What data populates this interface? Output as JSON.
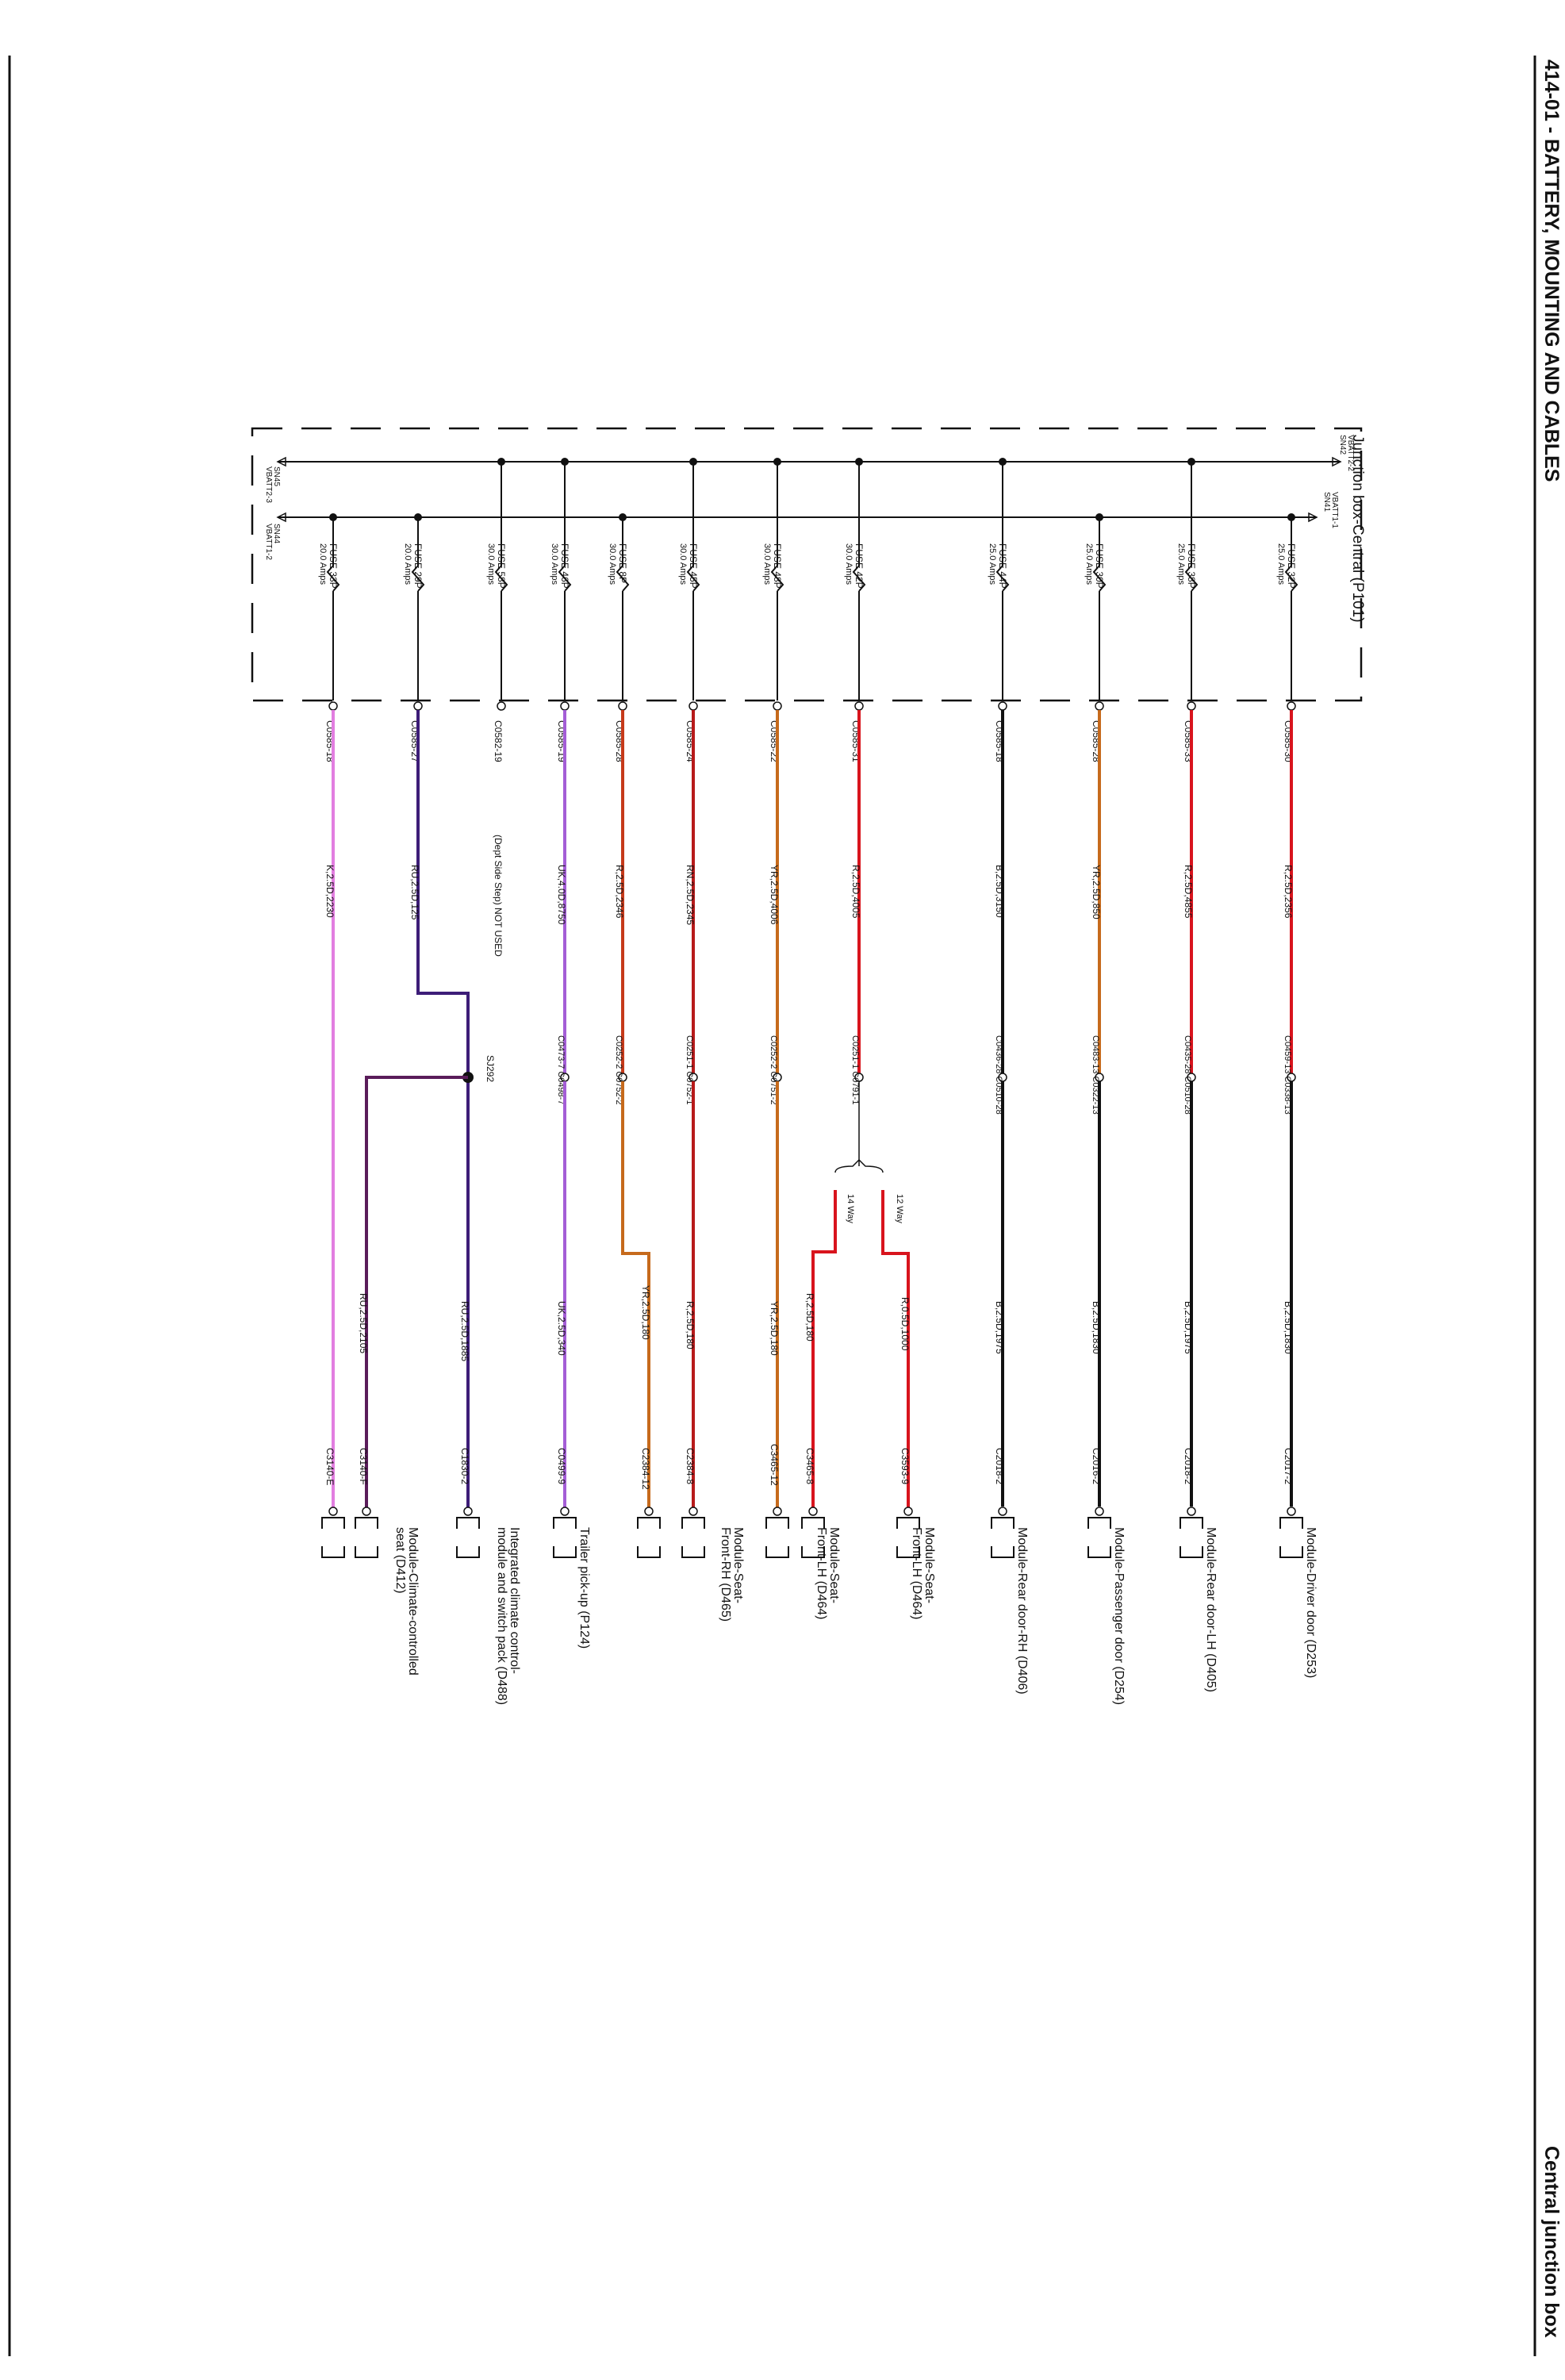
{
  "header": {
    "title": "414-01 - BATTERY, MOUNTING AND CABLES",
    "section": "Central junction box"
  },
  "junction_box": {
    "label": "Junction box-Central (P101)",
    "bus_a": {
      "left_label": "SN45",
      "left_sub": "VBATT2-3",
      "right_label": "VBATT2-2",
      "right_sub": "SN42"
    },
    "bus_b": {
      "left_label": "SN44",
      "left_sub": "VBATT1-2",
      "right_label": "VBATT1-1",
      "right_sub": "SN41"
    }
  },
  "circuits": [
    {
      "bus": "b",
      "fuse": "FUSE 32P",
      "amps": "25.0 Amps",
      "conn": "C0585-30",
      "wire": "R,2.5D,2356",
      "inline": "C0459-13 C0338-13",
      "wire2": "B,2.5D,1830",
      "end": "C2017-2",
      "module": [
        "Module-Driver door (D253)"
      ],
      "color": "#d8141d"
    },
    {
      "bus": "a",
      "fuse": "FUSE 38P",
      "amps": "25.0 Amps",
      "conn": "C0585-33",
      "wire": "R,2.5D,4855",
      "inline": "C0435-28 C0510-28",
      "wire2": "B,2.5D,1975",
      "end": "C2018-2",
      "module": [
        "Module-Rear door-LH (D405)"
      ],
      "color": "#d8141d"
    },
    {
      "bus": "b",
      "fuse": "FUSE 30P",
      "amps": "25.0 Amps",
      "conn": "C0585-28",
      "wire": "YR,2.5D,850",
      "inline": "C0483-13 C0322-13",
      "wire2": "B,2.5D,1830",
      "end": "C2016-2",
      "module": [
        "Module-Passenger door (D254)"
      ],
      "color": "#c66a1c"
    },
    {
      "bus": "a",
      "fuse": "FUSE 44P",
      "amps": "25.0 Amps",
      "conn": "C0585-18",
      "wire": "B,2.5D,3150",
      "inline": "C0436-28 C0510-28",
      "wire2": "B,2.5D,1975",
      "end": "C2018-2",
      "module": [
        "Module-Rear door-RH (D406)"
      ],
      "color": "#111111"
    },
    {
      "bus": "a",
      "fuse": "FUSE 42P",
      "amps": "30.0 Amps",
      "conn": "C0585-31",
      "wire": "R,2.5D,4005",
      "inline": "C0251-1 C0791-1",
      "wire2": "",
      "end": "",
      "module": [],
      "color": "#d8141d"
    },
    {
      "bus": "a",
      "fuse": "FUSE 48P",
      "amps": "30.0 Amps",
      "conn": "C0585-22",
      "wire": "YR,2.5D,4006",
      "inline": "C0252-2 C0751-2",
      "wire2": "YR,2.5D,180",
      "end": "C3465-12",
      "module": [],
      "color": "#c66a1c"
    },
    {
      "bus": "a",
      "fuse": "FUSE 45P",
      "amps": "30.0 Amps",
      "conn": "C0585-24",
      "wire": "RN,2.5D,2345",
      "inline": "C0251-1 C0752-1",
      "wire2": "R,2.5D,180",
      "end": "C2384-8",
      "module": [
        "Module-Seat-",
        "Front-RH (D465)"
      ],
      "color": "#b71a1a"
    },
    {
      "bus": "b",
      "fuse": "FUSE 8P",
      "amps": "30.0 Amps",
      "conn": "C0585-28",
      "wire": "R,2.5D,2346",
      "inline": "C0252-2 C0752-2",
      "wire2": "YR,2.5D,180",
      "end": "C2384-12",
      "module": [],
      "color": "#c63a1a"
    },
    {
      "bus": "a",
      "fuse": "FUSE 46P",
      "amps": "30.0 Amps",
      "conn": "C0585-19",
      "wire": "UK,4.0D,8750",
      "inline": "C0473-7 C0498-7",
      "wire2": "UK,2.5D,340",
      "end": "C0499-9",
      "module": [
        "Trailer pick-up (P124)"
      ],
      "color": "#a45ed6"
    },
    {
      "bus": "a",
      "fuse": "FUSE 58P",
      "amps": "30.0 Amps",
      "conn": "C0582-19",
      "wire": "(Dept Side Step) NOT USED",
      "inline": "",
      "wire2": "",
      "end": "",
      "module": [],
      "color": "#111111"
    },
    {
      "bus": "b",
      "fuse": "FUSE 29P",
      "amps": "20.0 Amps",
      "conn": "C0585-27",
      "wire": "RU,2.5D,125",
      "inline": "",
      "wire2": "RU,2.5D,1885",
      "end": "C1830-2",
      "module": [
        "Integrated climate control-",
        "module and switch pack (D488)"
      ],
      "color": "#3d1d78"
    },
    {
      "bus": "b",
      "fuse": "FUSE 33P",
      "amps": "20.0 Amps",
      "conn": "C0585-18",
      "wire": "K,2.5D,2230",
      "inline": "",
      "wire2": "RU,2.5D,2105",
      "end": "C3140-F",
      "module": [
        "Module-Climate-controlled",
        "seat (D412)"
      ],
      "color": "#e27ee0"
    }
  ],
  "seat_lh": {
    "way12": "12 Way",
    "way14": "14 Way",
    "wire_a": "R,0.5D,1000",
    "end_a": "C3593-9",
    "module_a": [
      "Module-Seat-",
      "Front-LH (D464)"
    ],
    "wire_b": "R,2.5D,180",
    "end_b": "C3465-8",
    "module_b": [
      "Module-Seat-",
      "Front-LH (D464)"
    ]
  },
  "splice": "SJ292",
  "climate_seat_end": "C3140-E"
}
